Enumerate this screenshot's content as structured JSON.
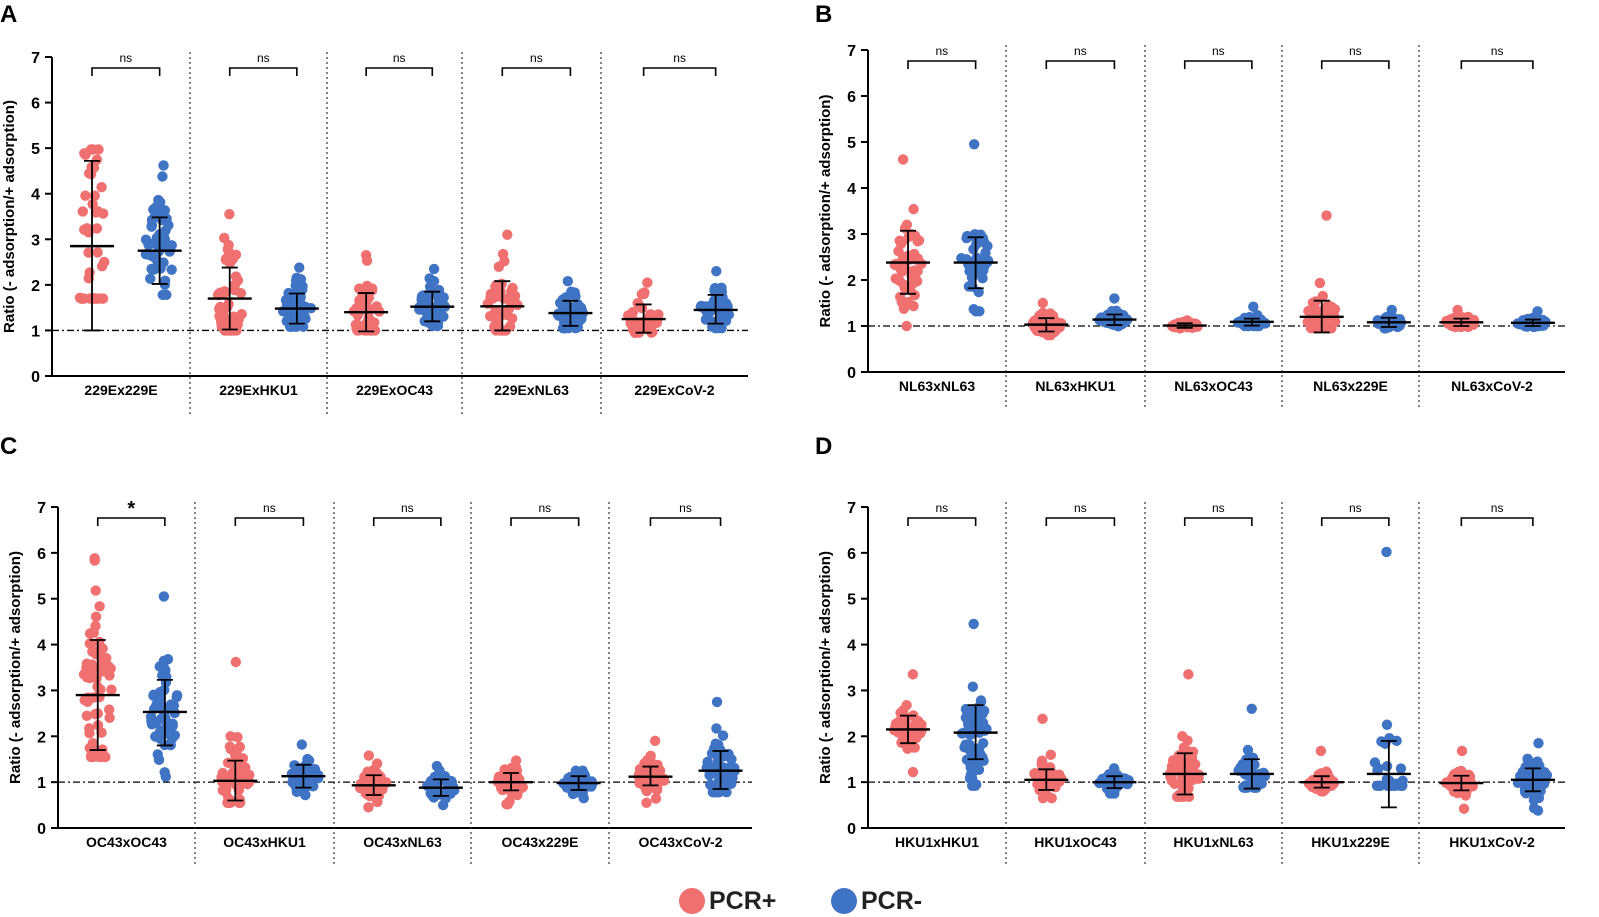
{
  "legend": {
    "items": [
      {
        "label": "PCR+",
        "color": "#f07070"
      },
      {
        "label": "PCR-",
        "color": "#3f73c4"
      }
    ]
  },
  "colors": {
    "pcr_pos": "#f07070",
    "pcr_neg": "#3f73c4",
    "axis": "#000000"
  },
  "chart_data": [
    {
      "panel": "A",
      "type": "scatter",
      "ylabel": "Ratio (- adsorption/+ adsorption)",
      "ylim": [
        0,
        7
      ],
      "yticks": [
        "0",
        "1",
        "2",
        "3",
        "4",
        "5",
        "6",
        "7"
      ],
      "reference_line": 1,
      "groups": [
        {
          "label": "229Ex229E",
          "sig": "ns",
          "pos": {
            "mean": 2.85,
            "sd_low": 1.0,
            "sd_high": 4.72,
            "max": 4.97,
            "min": 1.7,
            "n": 45
          },
          "neg": {
            "mean": 2.75,
            "sd_low": 2.02,
            "sd_high": 3.48,
            "max": 4.62,
            "min": 1.78,
            "n": 50
          }
        },
        {
          "label": "229ExHKU1",
          "sig": "ns",
          "pos": {
            "mean": 1.7,
            "sd_low": 1.02,
            "sd_high": 2.38,
            "max": 3.55,
            "min": 1.0,
            "n": 55
          },
          "neg": {
            "mean": 1.48,
            "sd_low": 1.15,
            "sd_high": 1.81,
            "max": 2.38,
            "min": 1.08,
            "n": 55
          }
        },
        {
          "label": "229ExOC43",
          "sig": "ns",
          "pos": {
            "mean": 1.4,
            "sd_low": 0.98,
            "sd_high": 1.82,
            "max": 2.65,
            "min": 1.0,
            "n": 40
          },
          "neg": {
            "mean": 1.52,
            "sd_low": 1.2,
            "sd_high": 1.85,
            "max": 2.35,
            "min": 1.1,
            "n": 55
          }
        },
        {
          "label": "229ExNL63",
          "sig": "ns",
          "pos": {
            "mean": 1.53,
            "sd_low": 1.0,
            "sd_high": 2.08,
            "max": 3.1,
            "min": 1.0,
            "n": 45
          },
          "neg": {
            "mean": 1.38,
            "sd_low": 1.1,
            "sd_high": 1.65,
            "max": 2.08,
            "min": 1.05,
            "n": 50
          }
        },
        {
          "label": "229ExCoV-2",
          "sig": "ns",
          "pos": {
            "mean": 1.25,
            "sd_low": 0.95,
            "sd_high": 1.57,
            "max": 2.05,
            "min": 0.95,
            "n": 35
          },
          "neg": {
            "mean": 1.45,
            "sd_low": 1.15,
            "sd_high": 1.78,
            "max": 2.3,
            "min": 1.05,
            "n": 55
          }
        }
      ]
    },
    {
      "panel": "B",
      "type": "scatter",
      "ylabel": "Ratio (- adsorption/+ adsorption)",
      "ylim": [
        0,
        7
      ],
      "yticks": [
        "0",
        "1",
        "2",
        "3",
        "4",
        "5",
        "6",
        "7"
      ],
      "reference_line": 1,
      "groups": [
        {
          "label": "NL63xNL63",
          "sig": "ns",
          "pos": {
            "mean": 2.38,
            "sd_low": 1.7,
            "sd_high": 3.07,
            "max": 4.62,
            "min": 1.0,
            "n": 45
          },
          "neg": {
            "mean": 2.38,
            "sd_low": 1.82,
            "sd_high": 2.93,
            "max": 4.95,
            "min": 1.32,
            "n": 45
          }
        },
        {
          "label": "NL63xHKU1",
          "sig": "ns",
          "pos": {
            "mean": 1.03,
            "sd_low": 0.88,
            "sd_high": 1.17,
            "max": 1.5,
            "min": 0.8,
            "n": 45
          },
          "neg": {
            "mean": 1.14,
            "sd_low": 1.02,
            "sd_high": 1.25,
            "max": 1.6,
            "min": 1.0,
            "n": 45
          }
        },
        {
          "label": "NL63xOC43",
          "sig": "ns",
          "pos": {
            "mean": 1.01,
            "sd_low": 0.96,
            "sd_high": 1.06,
            "max": 1.12,
            "min": 0.95,
            "n": 40
          },
          "neg": {
            "mean": 1.09,
            "sd_low": 1.01,
            "sd_high": 1.16,
            "max": 1.42,
            "min": 1.0,
            "n": 45
          }
        },
        {
          "label": "NL63x229E",
          "sig": "ns",
          "pos": {
            "mean": 1.2,
            "sd_low": 0.86,
            "sd_high": 1.55,
            "max": 3.4,
            "min": 0.95,
            "n": 40
          },
          "neg": {
            "mean": 1.08,
            "sd_low": 0.98,
            "sd_high": 1.18,
            "max": 1.35,
            "min": 0.95,
            "n": 45
          }
        },
        {
          "label": "NL63xCoV-2",
          "sig": "ns",
          "pos": {
            "mean": 1.08,
            "sd_low": 1.0,
            "sd_high": 1.16,
            "max": 1.35,
            "min": 0.98,
            "n": 40
          },
          "neg": {
            "mean": 1.07,
            "sd_low": 1.0,
            "sd_high": 1.14,
            "max": 1.32,
            "min": 0.98,
            "n": 45
          }
        }
      ]
    },
    {
      "panel": "C",
      "type": "scatter",
      "ylabel": "Ratio (- adsorption/+ adsorption)",
      "ylim": [
        0,
        7
      ],
      "yticks": [
        "0",
        "1",
        "2",
        "3",
        "4",
        "5",
        "6",
        "7"
      ],
      "reference_line": 1,
      "groups": [
        {
          "label": "OC43xOC43",
          "sig": "*",
          "pos": {
            "mean": 2.9,
            "sd_low": 1.7,
            "sd_high": 4.1,
            "max": 5.88,
            "min": 1.55,
            "n": 65
          },
          "neg": {
            "mean": 2.53,
            "sd_low": 1.8,
            "sd_high": 3.23,
            "max": 5.05,
            "min": 1.12,
            "n": 55
          }
        },
        {
          "label": "OC43xHKU1",
          "sig": "ns",
          "pos": {
            "mean": 1.03,
            "sd_low": 0.6,
            "sd_high": 1.47,
            "max": 3.62,
            "min": 0.55,
            "n": 60
          },
          "neg": {
            "mean": 1.13,
            "sd_low": 0.88,
            "sd_high": 1.38,
            "max": 1.82,
            "min": 0.72,
            "n": 55
          }
        },
        {
          "label": "OC43xNL63",
          "sig": "ns",
          "pos": {
            "mean": 0.93,
            "sd_low": 0.72,
            "sd_high": 1.15,
            "max": 1.58,
            "min": 0.45,
            "n": 55
          },
          "neg": {
            "mean": 0.88,
            "sd_low": 0.7,
            "sd_high": 1.06,
            "max": 1.35,
            "min": 0.5,
            "n": 45
          }
        },
        {
          "label": "OC43x229E",
          "sig": "ns",
          "pos": {
            "mean": 1.0,
            "sd_low": 0.82,
            "sd_high": 1.2,
            "max": 1.47,
            "min": 0.52,
            "n": 55
          },
          "neg": {
            "mean": 0.98,
            "sd_low": 0.83,
            "sd_high": 1.13,
            "max": 1.25,
            "min": 0.65,
            "n": 45
          }
        },
        {
          "label": "OC43xCoV-2",
          "sig": "ns",
          "pos": {
            "mean": 1.12,
            "sd_low": 0.93,
            "sd_high": 1.34,
            "max": 1.9,
            "min": 0.55,
            "n": 55
          },
          "neg": {
            "mean": 1.25,
            "sd_low": 0.85,
            "sd_high": 1.68,
            "max": 2.75,
            "min": 0.78,
            "n": 55
          }
        }
      ]
    },
    {
      "panel": "D",
      "type": "scatter",
      "ylabel": "Ratio (- adsorption/+ adsorption)",
      "ylim": [
        0,
        7
      ],
      "yticks": [
        "0",
        "1",
        "2",
        "3",
        "4",
        "5",
        "6",
        "7"
      ],
      "reference_line": 1,
      "groups": [
        {
          "label": "HKU1xHKU1",
          "sig": "ns",
          "pos": {
            "mean": 2.15,
            "sd_low": 1.85,
            "sd_high": 2.45,
            "max": 3.35,
            "min": 1.22,
            "n": 55
          },
          "neg": {
            "mean": 2.08,
            "sd_low": 1.5,
            "sd_high": 2.68,
            "max": 4.45,
            "min": 0.92,
            "n": 65
          }
        },
        {
          "label": "HKU1xOC43",
          "sig": "ns",
          "pos": {
            "mean": 1.05,
            "sd_low": 0.83,
            "sd_high": 1.28,
            "max": 2.38,
            "min": 0.65,
            "n": 45
          },
          "neg": {
            "mean": 1.0,
            "sd_low": 0.87,
            "sd_high": 1.13,
            "max": 1.3,
            "min": 0.75,
            "n": 45
          }
        },
        {
          "label": "HKU1xNL63",
          "sig": "ns",
          "pos": {
            "mean": 1.18,
            "sd_low": 0.73,
            "sd_high": 1.63,
            "max": 3.35,
            "min": 0.68,
            "n": 55
          },
          "neg": {
            "mean": 1.18,
            "sd_low": 0.86,
            "sd_high": 1.5,
            "max": 2.6,
            "min": 0.88,
            "n": 40
          }
        },
        {
          "label": "HKU1x229E",
          "sig": "ns",
          "pos": {
            "mean": 1.0,
            "sd_low": 0.88,
            "sd_high": 1.13,
            "max": 1.68,
            "min": 0.8,
            "n": 45
          },
          "neg": {
            "mean": 1.18,
            "sd_low": 0.45,
            "sd_high": 1.9,
            "max": 6.02,
            "min": 0.92,
            "n": 25
          }
        },
        {
          "label": "HKU1xCoV-2",
          "sig": "ns",
          "pos": {
            "mean": 0.98,
            "sd_low": 0.82,
            "sd_high": 1.14,
            "max": 1.68,
            "min": 0.42,
            "n": 45
          },
          "neg": {
            "mean": 1.05,
            "sd_low": 0.8,
            "sd_high": 1.3,
            "max": 1.85,
            "min": 0.38,
            "n": 55
          }
        }
      ]
    }
  ]
}
